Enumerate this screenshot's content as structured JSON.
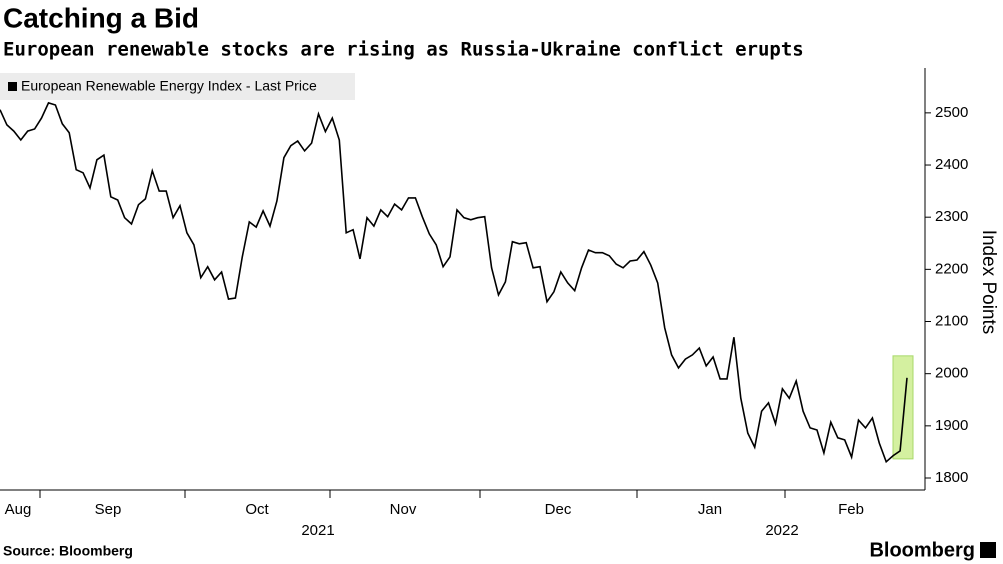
{
  "chart_data": {
    "type": "line",
    "title": "Catching a Bid",
    "subtitle": "European renewable stocks are rising as Russia-Ukraine conflict erupts",
    "source": "Source: Bloomberg",
    "brand": "Bloomberg",
    "y_axis_label": "Index Points",
    "months": [
      "Aug",
      "Sep",
      "Oct",
      "Nov",
      "Dec",
      "Jan",
      "Feb"
    ],
    "years": [
      "2021",
      "2022"
    ],
    "series": [
      {
        "name": "European Renewable Energy Index - Last Price",
        "color": "#000000",
        "values": [
          2506,
          2477,
          2465,
          2448,
          2465,
          2469,
          2490,
          2519,
          2515,
          2479,
          2462,
          2391,
          2385,
          2356,
          2410,
          2419,
          2339,
          2333,
          2299,
          2287,
          2324,
          2335,
          2389,
          2350,
          2350,
          2299,
          2322,
          2270,
          2247,
          2184,
          2205,
          2180,
          2195,
          2143,
          2145,
          2224,
          2291,
          2281,
          2312,
          2283,
          2331,
          2414,
          2437,
          2446,
          2427,
          2442,
          2498,
          2464,
          2490,
          2448,
          2270,
          2276,
          2220,
          2299,
          2283,
          2314,
          2301,
          2325,
          2314,
          2337,
          2337,
          2301,
          2268,
          2247,
          2205,
          2224,
          2314,
          2299,
          2295,
          2299,
          2301,
          2203,
          2151,
          2176,
          2253,
          2249,
          2251,
          2203,
          2205,
          2138,
          2157,
          2195,
          2174,
          2159,
          2203,
          2237,
          2232,
          2232,
          2226,
          2210,
          2203,
          2216,
          2218,
          2234,
          2208,
          2174,
          2088,
          2036,
          2011,
          2028,
          2036,
          2049,
          2015,
          2032,
          1990,
          1990,
          2070,
          1953,
          1886,
          1859,
          1928,
          1944,
          1904,
          1971,
          1953,
          1986,
          1928,
          1896,
          1892,
          1848,
          1907,
          1877,
          1873,
          1840,
          1911,
          1896,
          1915,
          1867,
          1831,
          1843,
          1852,
          1992
        ]
      }
    ],
    "ylim": [
      1777,
      2586
    ],
    "yticks": [
      1800,
      1900,
      2000,
      2100,
      2200,
      2300,
      2400,
      2500
    ],
    "grid": false
  }
}
